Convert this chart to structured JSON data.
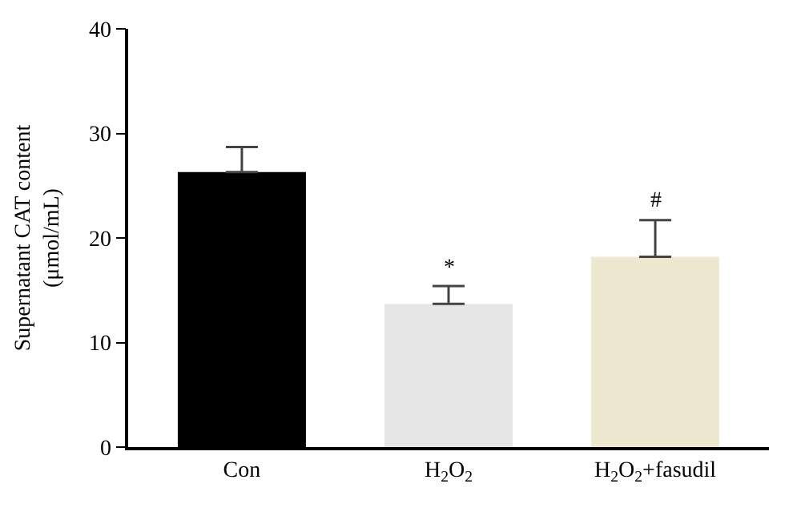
{
  "chart_data": {
    "type": "bar",
    "ylabel": "Supernatant CAT content\n(μmol/mL)",
    "categories": [
      "Con",
      "H$_{2}$O$_{2}$",
      "H$_{2}$O$_{2}$+fasudil"
    ],
    "values": [
      26.3,
      13.7,
      18.2
    ],
    "colors": [
      "#000000",
      "#e6e6e6",
      "#ede8cf"
    ],
    "errors": [
      [
        26.3,
        28.7
      ],
      [
        13.7,
        15.4
      ],
      [
        18.2,
        21.7
      ]
    ],
    "annotations": [
      {
        "text": "*",
        "x": "H$_{2}$O$_{2}$",
        "y": 15.4
      },
      {
        "text": "#",
        "x": "H$_{2}$O$_{2}$+fasudil",
        "y": 21.7
      }
    ],
    "ylim": [
      0,
      40
    ],
    "yticks": [
      0,
      10,
      20,
      30,
      40
    ]
  }
}
